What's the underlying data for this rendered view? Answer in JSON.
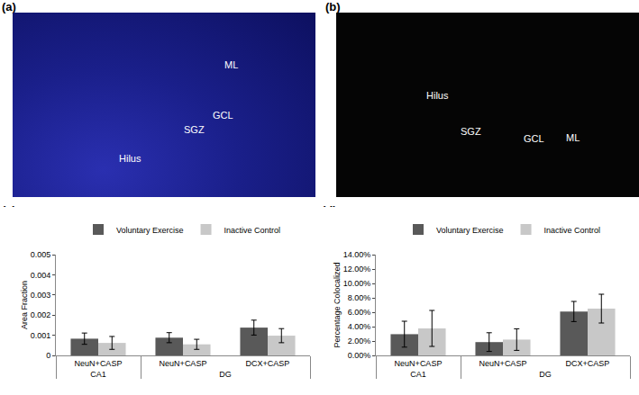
{
  "images": [
    {
      "panel_label": "(a)",
      "regions": [
        "ML",
        "GCL",
        "SGZ",
        "Hilus"
      ]
    },
    {
      "panel_label": "(b)",
      "regions": [
        "Hilus",
        "SGZ",
        "GCL",
        "ML"
      ]
    }
  ],
  "chart_data": [
    {
      "type": "bar",
      "panel_label": "(c)",
      "y_label": "Area Fraction",
      "groups": [
        "CA1",
        "DG",
        "DG"
      ],
      "categories": [
        "NeuN+CASP",
        "NeuN+CASP",
        "DCX+CASP"
      ],
      "series": [
        {
          "name": "Voluntary Exercise",
          "color": "#595959",
          "values": [
            0.00083,
            0.00088,
            0.00138
          ],
          "errors": [
            0.00028,
            0.00025,
            0.00037
          ]
        },
        {
          "name": "Inactive Control",
          "color": "#c8c8c8",
          "values": [
            0.00062,
            0.00055,
            0.00098
          ],
          "errors": [
            0.00032,
            0.00025,
            0.00035
          ]
        }
      ],
      "ylim": [
        0,
        0.005
      ],
      "yticks": [
        0,
        0.001,
        0.002,
        0.003,
        0.004,
        0.005
      ],
      "grid": false,
      "legend": "top"
    },
    {
      "type": "bar",
      "panel_label": "(d)",
      "y_label": "Percentage Colocalized",
      "groups": [
        "CA1",
        "DG",
        "DG"
      ],
      "categories": [
        "NeuN+CASP",
        "NeuN+CASP",
        "DCX+CASP"
      ],
      "series": [
        {
          "name": "Voluntary Exercise",
          "color": "#595959",
          "values": [
            2.95,
            1.85,
            6.1
          ],
          "errors": [
            1.8,
            1.3,
            1.4
          ]
        },
        {
          "name": "Inactive Control",
          "color": "#c8c8c8",
          "values": [
            3.75,
            2.2,
            6.5
          ],
          "errors": [
            2.5,
            1.5,
            2.0
          ]
        }
      ],
      "ylim": [
        0,
        14
      ],
      "yticks": [
        {
          "value": 0,
          "label": "0.00%"
        },
        {
          "value": 2,
          "label": "2.00%"
        },
        {
          "value": 4,
          "label": "4.00%"
        },
        {
          "value": 6,
          "label": "6.00%"
        },
        {
          "value": 8,
          "label": "8.00%"
        },
        {
          "value": 10,
          "label": "10.00%"
        },
        {
          "value": 12,
          "label": "12.00%"
        },
        {
          "value": 14,
          "label": "14.00%"
        }
      ],
      "grid": false,
      "legend": "top"
    }
  ]
}
